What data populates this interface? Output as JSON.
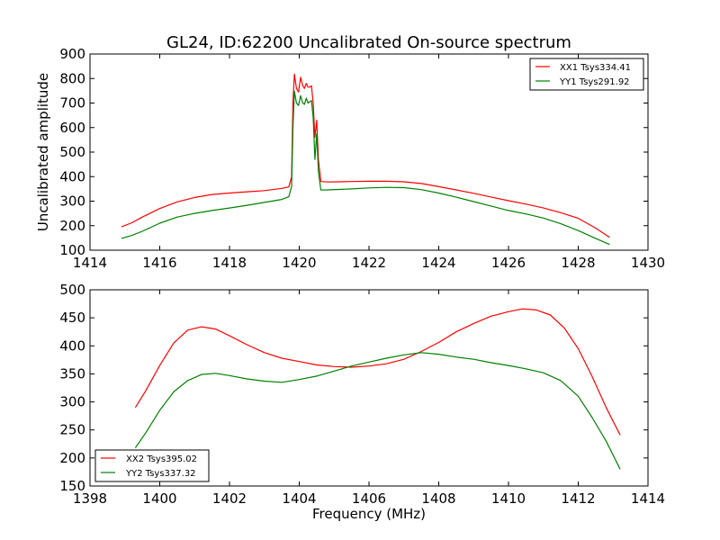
{
  "figure_title": "GL24, ID:62200 Uncalibrated On-source spectrum",
  "colors": {
    "red": "#ff0000",
    "green": "#008000"
  },
  "chart_data": [
    {
      "type": "line",
      "title": "GL24, ID:62200 Uncalibrated On-source spectrum",
      "xlabel": "",
      "ylabel": "Uncalibrated amplitude",
      "xlim": [
        1414,
        1430
      ],
      "ylim": [
        100,
        900
      ],
      "xticks": [
        1414,
        1416,
        1418,
        1420,
        1422,
        1424,
        1426,
        1428,
        1430
      ],
      "yticks": [
        100,
        200,
        300,
        400,
        500,
        600,
        700,
        800,
        900
      ],
      "legend_position": "top-right",
      "grid": false,
      "series": [
        {
          "name": "XX1 Tsys334.41",
          "color": "#ff0000",
          "points": [
            [
              1414.9,
              195
            ],
            [
              1415.2,
              212
            ],
            [
              1415.5,
              235
            ],
            [
              1416.0,
              270
            ],
            [
              1416.5,
              297
            ],
            [
              1417.0,
              315
            ],
            [
              1417.5,
              327
            ],
            [
              1418.0,
              333
            ],
            [
              1418.5,
              338
            ],
            [
              1419.0,
              343
            ],
            [
              1419.5,
              352
            ],
            [
              1419.7,
              358
            ],
            [
              1419.78,
              400
            ],
            [
              1419.82,
              700
            ],
            [
              1419.86,
              818
            ],
            [
              1419.92,
              760
            ],
            [
              1419.98,
              745
            ],
            [
              1420.04,
              805
            ],
            [
              1420.1,
              770
            ],
            [
              1420.15,
              760
            ],
            [
              1420.2,
              780
            ],
            [
              1420.25,
              765
            ],
            [
              1420.3,
              765
            ],
            [
              1420.35,
              770
            ],
            [
              1420.4,
              700
            ],
            [
              1420.45,
              560
            ],
            [
              1420.5,
              630
            ],
            [
              1420.55,
              470
            ],
            [
              1420.62,
              380
            ],
            [
              1420.8,
              378
            ],
            [
              1421.5,
              380
            ],
            [
              1422.0,
              381
            ],
            [
              1422.5,
              381
            ],
            [
              1423.0,
              379
            ],
            [
              1423.5,
              372
            ],
            [
              1424.0,
              359
            ],
            [
              1424.5,
              346
            ],
            [
              1425.0,
              332
            ],
            [
              1425.5,
              317
            ],
            [
              1426.0,
              302
            ],
            [
              1426.5,
              288
            ],
            [
              1427.0,
              272
            ],
            [
              1427.5,
              253
            ],
            [
              1428.0,
              230
            ],
            [
              1428.5,
              190
            ],
            [
              1428.9,
              152
            ]
          ]
        },
        {
          "name": "YY1 Tsys291.92",
          "color": "#008000",
          "points": [
            [
              1414.9,
              148
            ],
            [
              1415.2,
              160
            ],
            [
              1415.5,
              177
            ],
            [
              1416.0,
              210
            ],
            [
              1416.5,
              235
            ],
            [
              1417.0,
              250
            ],
            [
              1417.5,
              262
            ],
            [
              1418.0,
              272
            ],
            [
              1418.5,
              283
            ],
            [
              1419.0,
              295
            ],
            [
              1419.5,
              307
            ],
            [
              1419.7,
              318
            ],
            [
              1419.78,
              360
            ],
            [
              1419.82,
              600
            ],
            [
              1419.86,
              748
            ],
            [
              1419.92,
              700
            ],
            [
              1419.98,
              690
            ],
            [
              1420.04,
              730
            ],
            [
              1420.1,
              700
            ],
            [
              1420.15,
              695
            ],
            [
              1420.2,
              720
            ],
            [
              1420.25,
              700
            ],
            [
              1420.3,
              705
            ],
            [
              1420.35,
              710
            ],
            [
              1420.4,
              640
            ],
            [
              1420.45,
              470
            ],
            [
              1420.5,
              575
            ],
            [
              1420.55,
              420
            ],
            [
              1420.62,
              345
            ],
            [
              1420.8,
              346
            ],
            [
              1421.5,
              350
            ],
            [
              1422.0,
              354
            ],
            [
              1422.5,
              356
            ],
            [
              1423.0,
              355
            ],
            [
              1423.5,
              347
            ],
            [
              1424.0,
              333
            ],
            [
              1424.5,
              316
            ],
            [
              1425.0,
              298
            ],
            [
              1425.5,
              280
            ],
            [
              1426.0,
              262
            ],
            [
              1426.5,
              248
            ],
            [
              1427.0,
              231
            ],
            [
              1427.5,
              208
            ],
            [
              1428.0,
              180
            ],
            [
              1428.5,
              148
            ],
            [
              1428.9,
              123
            ]
          ]
        }
      ]
    },
    {
      "type": "line",
      "title": "",
      "xlabel": "Frequency (MHz)",
      "ylabel": "",
      "xlim": [
        1398,
        1414
      ],
      "ylim": [
        150,
        500
      ],
      "xticks": [
        1398,
        1400,
        1402,
        1404,
        1406,
        1408,
        1410,
        1412,
        1414
      ],
      "yticks": [
        150,
        200,
        250,
        300,
        350,
        400,
        450,
        500
      ],
      "legend_position": "bottom-left",
      "grid": false,
      "series": [
        {
          "name": "XX2 Tsys395.02",
          "color": "#ff0000",
          "points": [
            [
              1399.3,
              290
            ],
            [
              1399.6,
              320
            ],
            [
              1400.0,
              365
            ],
            [
              1400.4,
              405
            ],
            [
              1400.8,
              428
            ],
            [
              1401.2,
              434
            ],
            [
              1401.6,
              430
            ],
            [
              1402.0,
              418
            ],
            [
              1402.5,
              402
            ],
            [
              1403.0,
              388
            ],
            [
              1403.5,
              378
            ],
            [
              1404.0,
              372
            ],
            [
              1404.5,
              366
            ],
            [
              1405.0,
              363
            ],
            [
              1405.5,
              362
            ],
            [
              1406.0,
              364
            ],
            [
              1406.5,
              368
            ],
            [
              1407.0,
              376
            ],
            [
              1407.5,
              390
            ],
            [
              1408.0,
              406
            ],
            [
              1408.5,
              425
            ],
            [
              1409.0,
              440
            ],
            [
              1409.5,
              453
            ],
            [
              1410.0,
              461
            ],
            [
              1410.4,
              466
            ],
            [
              1410.8,
              464
            ],
            [
              1411.2,
              455
            ],
            [
              1411.6,
              432
            ],
            [
              1412.0,
              395
            ],
            [
              1412.4,
              345
            ],
            [
              1412.8,
              290
            ],
            [
              1413.2,
              241
            ]
          ]
        },
        {
          "name": "YY2 Tsys337.32",
          "color": "#008000",
          "points": [
            [
              1399.3,
              218
            ],
            [
              1399.6,
              245
            ],
            [
              1400.0,
              285
            ],
            [
              1400.4,
              318
            ],
            [
              1400.8,
              338
            ],
            [
              1401.2,
              349
            ],
            [
              1401.6,
              351
            ],
            [
              1402.0,
              347
            ],
            [
              1402.5,
              341
            ],
            [
              1403.0,
              337
            ],
            [
              1403.5,
              335
            ],
            [
              1404.0,
              340
            ],
            [
              1404.5,
              346
            ],
            [
              1405.0,
              355
            ],
            [
              1405.5,
              364
            ],
            [
              1406.0,
              371
            ],
            [
              1406.5,
              378
            ],
            [
              1407.0,
              384
            ],
            [
              1407.5,
              388
            ],
            [
              1408.0,
              385
            ],
            [
              1408.5,
              380
            ],
            [
              1409.0,
              376
            ],
            [
              1409.5,
              370
            ],
            [
              1410.0,
              365
            ],
            [
              1410.5,
              359
            ],
            [
              1411.0,
              352
            ],
            [
              1411.5,
              338
            ],
            [
              1412.0,
              310
            ],
            [
              1412.4,
              272
            ],
            [
              1412.8,
              230
            ],
            [
              1413.2,
              180
            ]
          ]
        }
      ]
    }
  ]
}
